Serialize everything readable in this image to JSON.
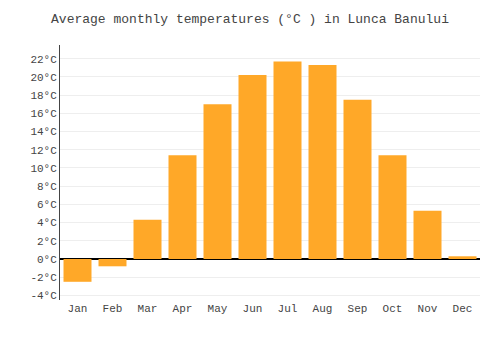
{
  "chart_data": {
    "type": "bar",
    "title": "Average monthly temperatures (°C ) in Lunca Banului",
    "categories": [
      "Jan",
      "Feb",
      "Mar",
      "Apr",
      "May",
      "Jun",
      "Jul",
      "Aug",
      "Sep",
      "Oct",
      "Nov",
      "Dec"
    ],
    "values": [
      -2.5,
      -0.8,
      4.3,
      11.4,
      17.0,
      20.2,
      21.7,
      21.3,
      17.5,
      11.4,
      5.3,
      0.3
    ],
    "color": "#FFA828",
    "ylim": [
      -4.5,
      23.5
    ],
    "yticks": [
      {
        "value": -4,
        "label": "-4°C"
      },
      {
        "value": -2,
        "label": "-2°C"
      },
      {
        "value": 0,
        "label": "0°C"
      },
      {
        "value": 2,
        "label": "2°C"
      },
      {
        "value": 4,
        "label": "4°C"
      },
      {
        "value": 6,
        "label": "6°C"
      },
      {
        "value": 8,
        "label": "8°C"
      },
      {
        "value": 10,
        "label": "10°C"
      },
      {
        "value": 12,
        "label": "12°C"
      },
      {
        "value": 14,
        "label": "14°C"
      },
      {
        "value": 16,
        "label": "16°C"
      },
      {
        "value": 18,
        "label": "18°C"
      },
      {
        "value": 20,
        "label": "20°C"
      },
      {
        "value": 22,
        "label": "22°C"
      }
    ],
    "grid": true
  }
}
